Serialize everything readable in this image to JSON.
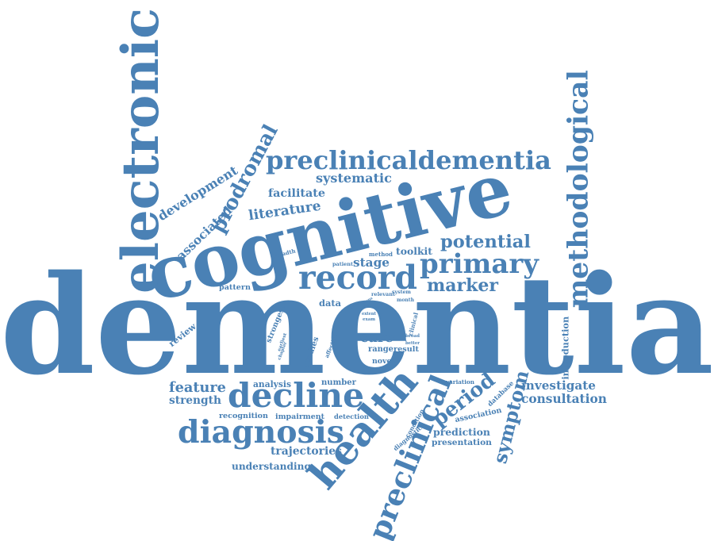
{
  "color": "#4a81b5",
  "words": [
    {
      "text": "dementia",
      "w": 900
    },
    {
      "text": "cognitive",
      "w": 470
    },
    {
      "text": "electronic",
      "w": 360
    },
    {
      "text": "preclinicaldementia",
      "w": 360
    },
    {
      "text": "methodological",
      "w": 300
    },
    {
      "text": "prodromal",
      "w": 150
    },
    {
      "text": "development",
      "w": 115
    },
    {
      "text": "associated",
      "w": 90
    },
    {
      "text": "systematic",
      "w": 96
    },
    {
      "text": "facilitate",
      "w": 72
    },
    {
      "text": "literature",
      "w": 92
    },
    {
      "text": "potential",
      "w": 114
    },
    {
      "text": "primary",
      "w": 150
    },
    {
      "text": "record",
      "w": 150
    },
    {
      "text": "marker",
      "w": 90
    },
    {
      "text": "toolkit",
      "w": 46
    },
    {
      "text": "stage",
      "w": 46
    },
    {
      "text": "method",
      "w": 30
    },
    {
      "text": "patient",
      "w": 26
    },
    {
      "text": "breadth",
      "w": 30
    },
    {
      "text": "pattern",
      "w": 40
    },
    {
      "text": "relevant",
      "w": 30
    },
    {
      "text": "data",
      "w": 28
    },
    {
      "text": "review",
      "w": 40
    },
    {
      "text": "strongest",
      "w": 50
    },
    {
      "text": "earliest",
      "w": 24
    },
    {
      "text": "chapter",
      "w": 24
    },
    {
      "text": "studies",
      "w": 40
    },
    {
      "text": "affective",
      "w": 32
    },
    {
      "text": "care",
      "w": 42
    },
    {
      "text": "range",
      "w": 32
    },
    {
      "text": "result",
      "w": 32
    },
    {
      "text": "novel",
      "w": 28
    },
    {
      "text": "broad",
      "w": 18
    },
    {
      "text": "better",
      "w": 18
    },
    {
      "text": "clinical",
      "w": 30
    },
    {
      "text": "system",
      "w": 24
    },
    {
      "text": "month",
      "w": 22
    },
    {
      "text": "trust",
      "w": 14
    },
    {
      "text": "factor",
      "w": 16
    },
    {
      "text": "focus",
      "w": 14
    },
    {
      "text": "spot",
      "w": 12
    },
    {
      "text": "extent",
      "w": 18
    },
    {
      "text": "exam",
      "w": 16
    },
    {
      "text": "introduction",
      "w": 80
    },
    {
      "text": "investigate",
      "w": 94
    },
    {
      "text": "consultation",
      "w": 108
    },
    {
      "text": "feature",
      "w": 72
    },
    {
      "text": "analysis",
      "w": 48
    },
    {
      "text": "number",
      "w": 44
    },
    {
      "text": "strength",
      "w": 66
    },
    {
      "text": "decline",
      "w": 172
    },
    {
      "text": "recognition",
      "w": 62
    },
    {
      "text": "impairment",
      "w": 62
    },
    {
      "text": "detection",
      "w": 44
    },
    {
      "text": "diagnosis",
      "w": 210
    },
    {
      "text": "trajectories",
      "w": 90
    },
    {
      "text": "understanding",
      "w": 100
    },
    {
      "text": "health",
      "w": 180
    },
    {
      "text": "preclinical",
      "w": 220
    },
    {
      "text": "period",
      "w": 92
    },
    {
      "text": "symptom",
      "w": 120
    },
    {
      "text": "variation",
      "w": 36
    },
    {
      "text": "database",
      "w": 42
    },
    {
      "text": "association",
      "w": 60
    },
    {
      "text": "condition",
      "w": 40
    },
    {
      "text": "diagnostic",
      "w": 44
    },
    {
      "text": "prediction",
      "w": 72
    },
    {
      "text": "presentation",
      "w": 76
    }
  ]
}
